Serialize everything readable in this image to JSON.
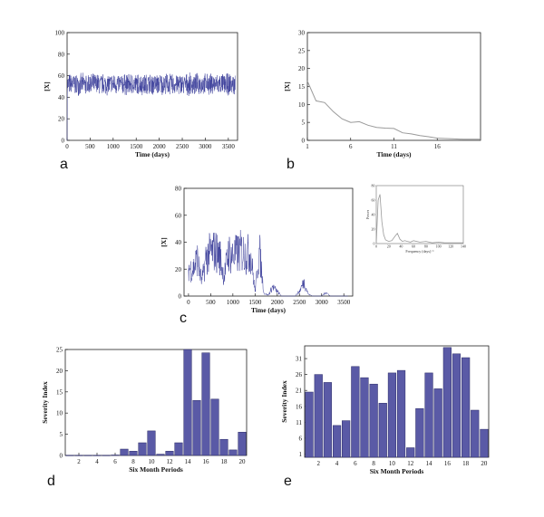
{
  "panel_labels": [
    "a",
    "b",
    "c",
    "d",
    "e"
  ],
  "colors": {
    "series": "#3a3d9a",
    "bar": "#5a5aa6",
    "bar_stroke": "#2b2b66",
    "decay": "#9a9a9a"
  },
  "chart_data": [
    {
      "id": "a",
      "type": "line",
      "xlabel": "Time (days)",
      "ylabel": "[X]",
      "xlim": [
        0,
        3700
      ],
      "ylim": [
        0,
        100
      ],
      "xticks": [
        0,
        500,
        1000,
        1500,
        2000,
        2500,
        3000,
        3500
      ],
      "yticks": [
        0,
        20,
        40,
        60,
        80,
        100
      ],
      "series": [
        {
          "mean": 52,
          "noise_range": [
            40,
            62
          ],
          "x_range": [
            0,
            3650
          ]
        }
      ]
    },
    {
      "id": "b",
      "type": "line",
      "xlabel": "Time (days)",
      "ylabel": "[X]",
      "xlim": [
        1,
        21
      ],
      "ylim": [
        0,
        30
      ],
      "xticks": [
        1,
        6,
        11,
        16
      ],
      "yticks": [
        0,
        5,
        10,
        15,
        20,
        25,
        30
      ],
      "series": [
        {
          "x": [
            1,
            2,
            3,
            4,
            5,
            6,
            7,
            8,
            9,
            10,
            11,
            12,
            13,
            14,
            15,
            16,
            17,
            18,
            19,
            20,
            21
          ],
          "y": [
            16.5,
            11,
            10.5,
            8,
            6,
            5,
            5.2,
            4.2,
            3.6,
            3.4,
            3.3,
            2.1,
            1.8,
            1.3,
            1,
            0.6,
            0.5,
            0.4,
            0.3,
            0.3,
            0.3
          ]
        }
      ]
    },
    {
      "id": "c",
      "type": "line",
      "xlabel": "Time (days)",
      "ylabel": "[X]",
      "xlim": [
        -100,
        3700
      ],
      "ylim": [
        0,
        80
      ],
      "xticks": [
        0,
        500,
        1000,
        1500,
        2000,
        2500,
        3000,
        3500
      ],
      "yticks": [
        0,
        20,
        40,
        60,
        80
      ],
      "series": [
        {
          "x": [
            0,
            100,
            200,
            300,
            400,
            500,
            600,
            700,
            800,
            900,
            1000,
            1100,
            1200,
            1300,
            1400,
            1500,
            1600,
            1700,
            1800,
            1900,
            2000,
            2100,
            2200,
            2300,
            2400,
            2500,
            2600,
            2700,
            2800,
            2900,
            3000,
            3100,
            3200,
            3300,
            3400,
            3500,
            3600
          ],
          "y": [
            30,
            28,
            40,
            15,
            42,
            46,
            48,
            44,
            20,
            46,
            42,
            45,
            48,
            44,
            45,
            5,
            48,
            3,
            1,
            10,
            5,
            0,
            0,
            0,
            0,
            5,
            15,
            2,
            0,
            0,
            0,
            4,
            0,
            0,
            0,
            0,
            0
          ]
        }
      ],
      "inset": {
        "type": "line",
        "xlabel": "Frequency (days)⁻¹",
        "ylabel": "Power",
        "xticks": [
          "0",
          "20",
          "40",
          "60",
          "80",
          "100",
          "120",
          "140"
        ],
        "yticks": [
          "0",
          "20",
          "40",
          "60",
          "80"
        ],
        "xlim": [
          0,
          140
        ],
        "ylim": [
          0,
          80
        ],
        "x": [
          0,
          3,
          6,
          9,
          12,
          15,
          20,
          25,
          30,
          34,
          38,
          42,
          46,
          50,
          55,
          60,
          70,
          80,
          90,
          100,
          110,
          120,
          130,
          140
        ],
        "y": [
          0,
          60,
          68,
          30,
          12,
          5,
          3,
          4,
          10,
          14,
          6,
          3,
          4,
          3,
          2,
          4,
          2,
          3,
          1,
          2,
          1,
          1,
          1,
          1
        ]
      }
    },
    {
      "id": "d",
      "type": "bar",
      "xlabel": "Six Month Periods",
      "ylabel": "Severity Index",
      "xlim": [
        0.5,
        20.5
      ],
      "ylim": [
        0,
        25
      ],
      "xticks": [
        2,
        4,
        6,
        8,
        10,
        12,
        14,
        16,
        18,
        20
      ],
      "yticks": [
        0,
        5,
        10,
        15,
        20,
        25
      ],
      "categories": [
        1,
        2,
        3,
        4,
        5,
        6,
        7,
        8,
        9,
        10,
        11,
        12,
        13,
        14,
        15,
        16,
        17,
        18,
        19,
        20
      ],
      "values": [
        0.05,
        0.05,
        0.05,
        0.05,
        0.05,
        0.1,
        1.5,
        1,
        3,
        5.8,
        0.3,
        1,
        3,
        25,
        13,
        24.2,
        13.3,
        3.8,
        1.3,
        5.5
      ]
    },
    {
      "id": "e",
      "type": "bar",
      "xlabel": "Six Month Periods",
      "ylabel": "Severity Index",
      "xlim": [
        0.5,
        20.5
      ],
      "ylim": [
        0,
        35
      ],
      "xticks": [
        2,
        4,
        6,
        8,
        10,
        12,
        14,
        16,
        18,
        20
      ],
      "yticks": [
        1,
        6,
        11,
        16,
        21,
        26,
        31
      ],
      "categories": [
        1,
        2,
        3,
        4,
        5,
        6,
        7,
        8,
        9,
        10,
        11,
        12,
        13,
        14,
        15,
        16,
        17,
        18,
        19,
        20
      ],
      "values": [
        20.5,
        26,
        23.5,
        10,
        11.5,
        28.5,
        25,
        23,
        17,
        26.5,
        27.3,
        3,
        15.3,
        26.5,
        21.5,
        34.5,
        32.5,
        31.3,
        14.8,
        8.8
      ]
    }
  ]
}
